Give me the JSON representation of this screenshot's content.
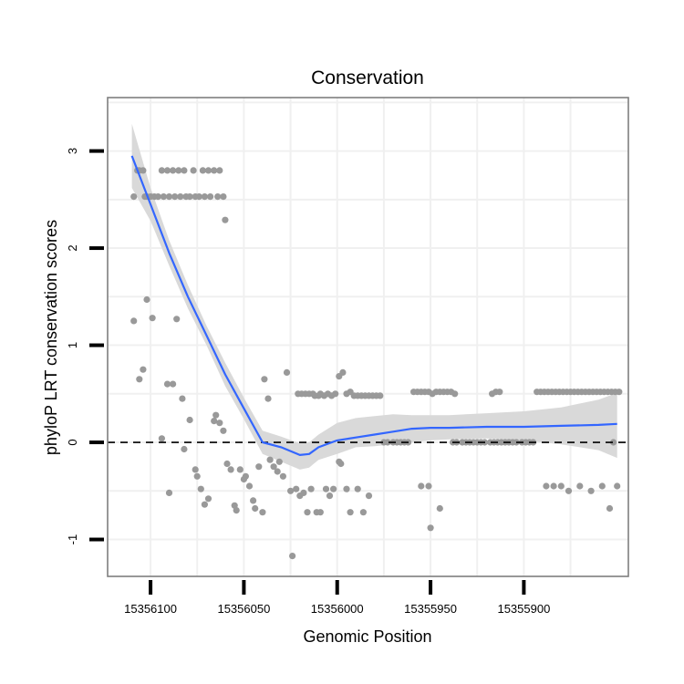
{
  "chart_data": {
    "type": "scatter",
    "title": "Conservation",
    "xlabel": "Genomic Position",
    "ylabel": "phyloP LRT conservation scores",
    "x_reversed": true,
    "xlim": [
      15356123,
      15355844
    ],
    "ylim": [
      -1.38,
      3.55
    ],
    "x_ticks": [
      15356100,
      15356050,
      15356000,
      15355950,
      15355900
    ],
    "x_tick_labels": [
      "15356100",
      "15356050",
      "15356000",
      "15355950",
      "15355900"
    ],
    "y_ticks": [
      -1,
      0,
      1,
      2,
      3
    ],
    "y_tick_labels": [
      "-1",
      "0",
      "1",
      "2",
      "3"
    ],
    "reference_line": {
      "y": 0,
      "style": "dashed"
    },
    "colors": {
      "points": "#999999",
      "smooth": "#3366FF",
      "ribbon": "#d9d9d9",
      "panel_border": "#7f7f7f",
      "grid": "#f0f0f0"
    },
    "series": [
      {
        "name": "scores",
        "kind": "points",
        "points": [
          [
            15356109,
            2.53
          ],
          [
            15356107,
            2.8
          ],
          [
            15356106,
            2.8
          ],
          [
            15356104,
            2.8
          ],
          [
            15356103,
            2.53
          ],
          [
            15356102,
            2.53
          ],
          [
            15356100,
            2.53
          ],
          [
            15356098,
            2.53
          ],
          [
            15356096,
            2.53
          ],
          [
            15356094,
            2.8
          ],
          [
            15356093,
            2.53
          ],
          [
            15356091,
            2.8
          ],
          [
            15356090,
            2.53
          ],
          [
            15356088,
            2.8
          ],
          [
            15356087,
            2.53
          ],
          [
            15356085,
            2.8
          ],
          [
            15356084,
            2.53
          ],
          [
            15356082,
            2.8
          ],
          [
            15356081,
            2.53
          ],
          [
            15356079,
            2.53
          ],
          [
            15356077,
            2.8
          ],
          [
            15356076,
            2.53
          ],
          [
            15356074,
            2.53
          ],
          [
            15356072,
            2.8
          ],
          [
            15356071,
            2.53
          ],
          [
            15356069,
            2.8
          ],
          [
            15356068,
            2.53
          ],
          [
            15356066,
            2.8
          ],
          [
            15356064,
            2.53
          ],
          [
            15356063,
            2.8
          ],
          [
            15356061,
            2.53
          ],
          [
            15356060,
            2.29
          ],
          [
            15356109,
            1.25
          ],
          [
            15356106,
            0.65
          ],
          [
            15356104,
            0.75
          ],
          [
            15356102,
            1.47
          ],
          [
            15356099,
            1.28
          ],
          [
            15356094,
            0.04
          ],
          [
            15356091,
            0.6
          ],
          [
            15356090,
            -0.52
          ],
          [
            15356088,
            0.6
          ],
          [
            15356086,
            1.27
          ],
          [
            15356083,
            0.45
          ],
          [
            15356082,
            -0.07
          ],
          [
            15356079,
            0.23
          ],
          [
            15356076,
            -0.28
          ],
          [
            15356075,
            -0.35
          ],
          [
            15356073,
            -0.48
          ],
          [
            15356071,
            -0.64
          ],
          [
            15356069,
            -0.58
          ],
          [
            15356066,
            0.22
          ],
          [
            15356065,
            0.28
          ],
          [
            15356063,
            0.2
          ],
          [
            15356061,
            0.12
          ],
          [
            15356059,
            -0.22
          ],
          [
            15356057,
            -0.28
          ],
          [
            15356055,
            -0.65
          ],
          [
            15356054,
            -0.7
          ],
          [
            15356052,
            -0.28
          ],
          [
            15356050,
            -0.38
          ],
          [
            15356049,
            -0.35
          ],
          [
            15356047,
            -0.45
          ],
          [
            15356045,
            -0.6
          ],
          [
            15356044,
            -0.68
          ],
          [
            15356042,
            -0.25
          ],
          [
            15356040,
            -0.72
          ],
          [
            15356039,
            0.65
          ],
          [
            15356037,
            0.45
          ],
          [
            15356036,
            -0.18
          ],
          [
            15356034,
            -0.25
          ],
          [
            15356032,
            -0.3
          ],
          [
            15356031,
            -0.2
          ],
          [
            15356029,
            -0.35
          ],
          [
            15356027,
            0.72
          ],
          [
            15356025,
            -0.5
          ],
          [
            15356024,
            -1.17
          ],
          [
            15356022,
            -0.48
          ],
          [
            15356021,
            0.5
          ],
          [
            15356019,
            0.5
          ],
          [
            15356017,
            0.5
          ],
          [
            15356015,
            0.5
          ],
          [
            15356013,
            0.5
          ],
          [
            15356012,
            0.48
          ],
          [
            15356010,
            0.48
          ],
          [
            15356009,
            0.5
          ],
          [
            15356007,
            0.48
          ],
          [
            15356005,
            0.5
          ],
          [
            15356003,
            0.48
          ],
          [
            15356001,
            0.5
          ],
          [
            15355999,
            0.68
          ],
          [
            15355997,
            0.72
          ],
          [
            15355995,
            0.5
          ],
          [
            15355993,
            0.52
          ],
          [
            15355991,
            0.48
          ],
          [
            15355989,
            0.48
          ],
          [
            15355987,
            0.48
          ],
          [
            15355985,
            0.48
          ],
          [
            15355983,
            0.48
          ],
          [
            15355981,
            0.48
          ],
          [
            15355979,
            0.48
          ],
          [
            15355977,
            0.48
          ],
          [
            15355975,
            0.0
          ],
          [
            15355973,
            0.0
          ],
          [
            15355970,
            0.0
          ],
          [
            15355968,
            0.0
          ],
          [
            15355966,
            0.0
          ],
          [
            15355964,
            0.0
          ],
          [
            15355962,
            0.0
          ],
          [
            15356020,
            -0.55
          ],
          [
            15356018,
            -0.52
          ],
          [
            15356016,
            -0.72
          ],
          [
            15356014,
            -0.48
          ],
          [
            15356011,
            -0.72
          ],
          [
            15356009,
            -0.72
          ],
          [
            15356006,
            -0.48
          ],
          [
            15356004,
            -0.55
          ],
          [
            15356002,
            -0.48
          ],
          [
            15355999,
            -0.2
          ],
          [
            15355998,
            -0.22
          ],
          [
            15355995,
            -0.48
          ],
          [
            15355993,
            -0.72
          ],
          [
            15355989,
            -0.48
          ],
          [
            15355986,
            -0.72
          ],
          [
            15355983,
            -0.55
          ],
          [
            15355959,
            0.52
          ],
          [
            15355957,
            0.52
          ],
          [
            15355955,
            0.52
          ],
          [
            15355953,
            0.52
          ],
          [
            15355951,
            0.52
          ],
          [
            15355949,
            0.5
          ],
          [
            15355947,
            0.52
          ],
          [
            15355945,
            0.52
          ],
          [
            15355943,
            0.52
          ],
          [
            15355941,
            0.52
          ],
          [
            15355939,
            0.52
          ],
          [
            15355937,
            0.5
          ],
          [
            15355955,
            -0.45
          ],
          [
            15355951,
            -0.45
          ],
          [
            15355950,
            -0.88
          ],
          [
            15355945,
            -0.68
          ],
          [
            15355938,
            0.0
          ],
          [
            15355936,
            0.0
          ],
          [
            15355933,
            0.0
          ],
          [
            15355931,
            0.0
          ],
          [
            15355929,
            0.0
          ],
          [
            15355927,
            0.0
          ],
          [
            15355925,
            0.0
          ],
          [
            15355923,
            0.0
          ],
          [
            15355921,
            0.0
          ],
          [
            15355918,
            0.0
          ],
          [
            15355916,
            0.0
          ],
          [
            15355914,
            0.0
          ],
          [
            15355912,
            0.0
          ],
          [
            15355910,
            0.0
          ],
          [
            15355908,
            0.0
          ],
          [
            15355906,
            0.0
          ],
          [
            15355904,
            0.0
          ],
          [
            15355901,
            0.0
          ],
          [
            15355899,
            0.0
          ],
          [
            15355897,
            0.0
          ],
          [
            15355895,
            0.0
          ],
          [
            15355917,
            0.5
          ],
          [
            15355915,
            0.52
          ],
          [
            15355913,
            0.52
          ],
          [
            15355893,
            0.52
          ],
          [
            15355891,
            0.52
          ],
          [
            15355889,
            0.52
          ],
          [
            15355887,
            0.52
          ],
          [
            15355885,
            0.52
          ],
          [
            15355883,
            0.52
          ],
          [
            15355881,
            0.52
          ],
          [
            15355879,
            0.52
          ],
          [
            15355877,
            0.52
          ],
          [
            15355875,
            0.52
          ],
          [
            15355873,
            0.52
          ],
          [
            15355871,
            0.52
          ],
          [
            15355869,
            0.52
          ],
          [
            15355867,
            0.52
          ],
          [
            15355865,
            0.52
          ],
          [
            15355863,
            0.52
          ],
          [
            15355861,
            0.52
          ],
          [
            15355859,
            0.52
          ],
          [
            15355857,
            0.52
          ],
          [
            15355855,
            0.52
          ],
          [
            15355853,
            0.52
          ],
          [
            15355851,
            0.52
          ],
          [
            15355849,
            0.52
          ],
          [
            15355888,
            -0.45
          ],
          [
            15355884,
            -0.45
          ],
          [
            15355880,
            -0.45
          ],
          [
            15355876,
            -0.5
          ],
          [
            15355870,
            -0.45
          ],
          [
            15355864,
            -0.5
          ],
          [
            15355858,
            -0.45
          ],
          [
            15355854,
            -0.68
          ],
          [
            15355850,
            -0.45
          ],
          [
            15355852,
            0.0
          ]
        ]
      },
      {
        "name": "loess fit",
        "kind": "smooth",
        "x": [
          15356110,
          15356100,
          15356090,
          15356080,
          15356070,
          15356060,
          15356050,
          15356040,
          15356030,
          15356020,
          15356015,
          15356010,
          15356000,
          15355990,
          15355980,
          15355970,
          15355960,
          15355950,
          15355940,
          15355920,
          15355900,
          15355880,
          15355860,
          15355850
        ],
        "y": [
          2.95,
          2.45,
          1.95,
          1.5,
          1.1,
          0.7,
          0.35,
          0.0,
          -0.05,
          -0.13,
          -0.12,
          -0.05,
          0.02,
          0.05,
          0.08,
          0.11,
          0.14,
          0.15,
          0.15,
          0.16,
          0.16,
          0.17,
          0.18,
          0.19
        ],
        "upper": [
          3.28,
          2.62,
          2.08,
          1.62,
          1.2,
          0.82,
          0.46,
          0.12,
          0.06,
          -0.01,
          0.0,
          0.08,
          0.2,
          0.25,
          0.27,
          0.29,
          0.28,
          0.28,
          0.28,
          0.3,
          0.32,
          0.36,
          0.44,
          0.51
        ],
        "lower": [
          2.62,
          2.28,
          1.82,
          1.38,
          1.0,
          0.58,
          0.24,
          -0.12,
          -0.2,
          -0.28,
          -0.26,
          -0.18,
          -0.12,
          -0.05,
          -0.04,
          -0.02,
          0.0,
          0.02,
          0.03,
          0.04,
          0.02,
          -0.02,
          -0.08,
          -0.16
        ]
      }
    ]
  }
}
